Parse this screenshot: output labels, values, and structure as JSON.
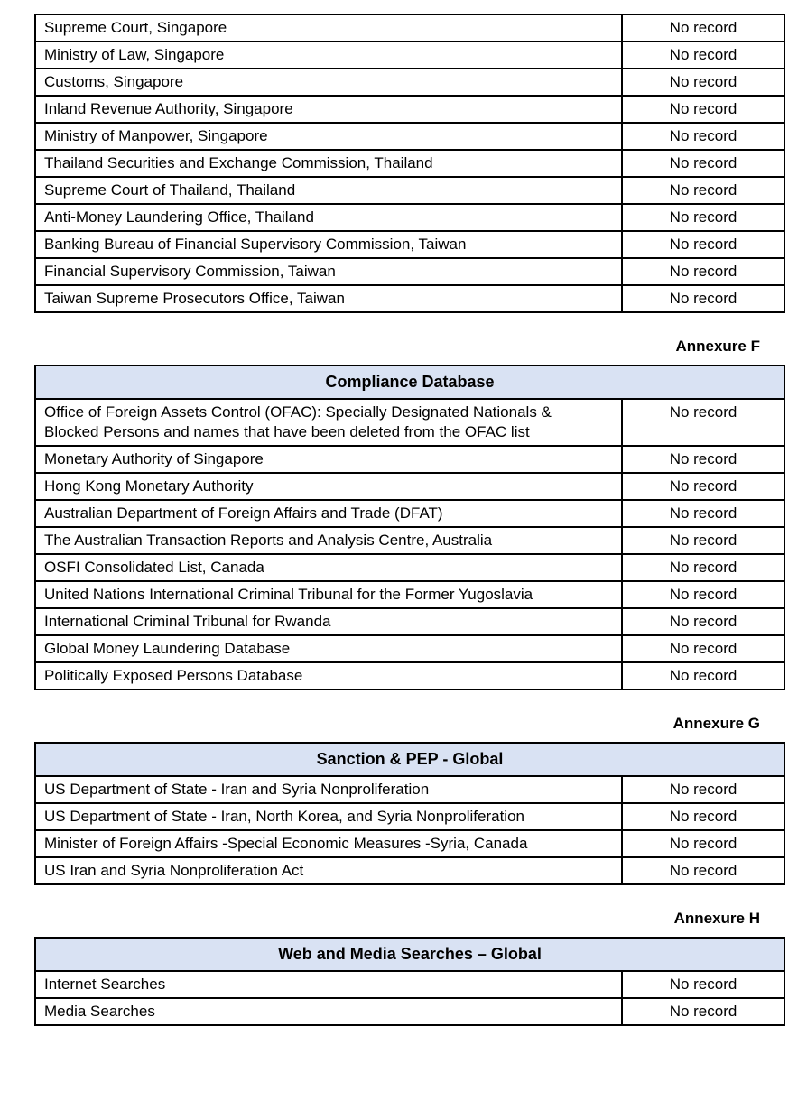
{
  "page": {
    "background": "#ffffff"
  },
  "colors": {
    "header_bg": "#d9e2f3",
    "border": "#000000",
    "text": "#000000"
  },
  "sections": [
    {
      "annexure": null,
      "title": null,
      "rows": [
        {
          "source": "Supreme Court, Singapore",
          "result": "No record"
        },
        {
          "source": "Ministry of Law, Singapore",
          "result": "No record"
        },
        {
          "source": "Customs, Singapore",
          "result": "No record"
        },
        {
          "source": "Inland Revenue Authority, Singapore",
          "result": "No record"
        },
        {
          "source": "Ministry of Manpower, Singapore",
          "result": "No record"
        },
        {
          "source": "Thailand Securities and Exchange Commission, Thailand",
          "result": "No record"
        },
        {
          "source": "Supreme Court of Thailand, Thailand",
          "result": "No record"
        },
        {
          "source": "Anti-Money Laundering Office, Thailand",
          "result": "No record"
        },
        {
          "source": "Banking Bureau of Financial Supervisory Commission, Taiwan",
          "result": "No record"
        },
        {
          "source": "Financial Supervisory Commission, Taiwan",
          "result": "No record"
        },
        {
          "source": "Taiwan Supreme Prosecutors Office, Taiwan",
          "result": "No record"
        }
      ]
    },
    {
      "annexure": "Annexure F",
      "title": "Compliance Database",
      "rows": [
        {
          "source": "Office of Foreign Assets Control (OFAC): Specially Designated Nationals & Blocked Persons and names that have been deleted from the OFAC list",
          "result": "No record"
        },
        {
          "source": "Monetary Authority of Singapore",
          "result": "No record"
        },
        {
          "source": "Hong Kong Monetary Authority",
          "result": "No record"
        },
        {
          "source": "Australian Department of Foreign Affairs and Trade (DFAT)",
          "result": "No record"
        },
        {
          "source": "The Australian Transaction Reports and Analysis Centre, Australia",
          "result": "No record"
        },
        {
          "source": "OSFI Consolidated List, Canada",
          "result": "No record"
        },
        {
          "source": "United Nations International Criminal Tribunal for the Former Yugoslavia",
          "result": "No record"
        },
        {
          "source": "International Criminal Tribunal for Rwanda",
          "result": "No record"
        },
        {
          "source": "Global Money Laundering Database",
          "result": "No record"
        },
        {
          "source": "Politically Exposed Persons Database",
          "result": "No record"
        }
      ]
    },
    {
      "annexure": "Annexure G",
      "title": "Sanction & PEP - Global",
      "rows": [
        {
          "source": "US Department of State - Iran and Syria Nonproliferation",
          "result": "No record"
        },
        {
          "source": "US Department of State - Iran, North Korea, and Syria Nonproliferation",
          "result": "No record"
        },
        {
          "source": "Minister of Foreign Affairs -Special Economic Measures -Syria, Canada",
          "result": "No record"
        },
        {
          "source": "US Iran and Syria Nonproliferation Act",
          "result": "No record"
        }
      ]
    },
    {
      "annexure": "Annexure H",
      "title": "Web and Media Searches – Global",
      "rows": [
        {
          "source": "Internet Searches",
          "result": "No record"
        },
        {
          "source": "Media Searches",
          "result": "No record"
        }
      ]
    }
  ]
}
